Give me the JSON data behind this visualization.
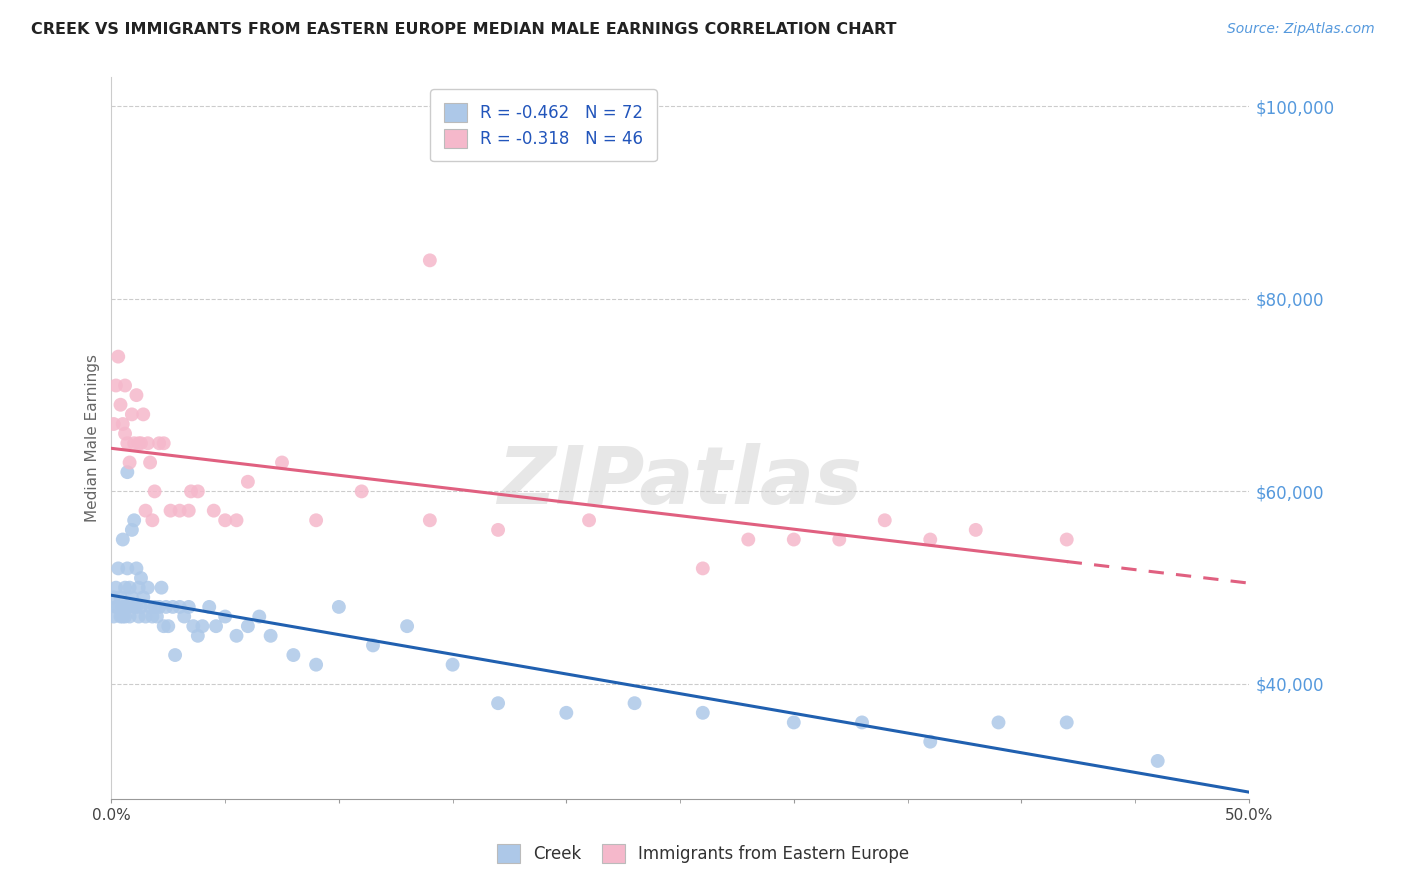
{
  "title": "CREEK VS IMMIGRANTS FROM EASTERN EUROPE MEDIAN MALE EARNINGS CORRELATION CHART",
  "source": "Source: ZipAtlas.com",
  "ylabel": "Median Male Earnings",
  "yticks": [
    40000,
    60000,
    80000,
    100000
  ],
  "ytick_labels": [
    "$40,000",
    "$60,000",
    "$80,000",
    "$100,000"
  ],
  "legend_labels": [
    "Creek",
    "Immigrants from Eastern Europe"
  ],
  "creek_R": "-0.462",
  "creek_N": "72",
  "ee_R": "-0.318",
  "ee_N": "46",
  "creek_color": "#adc8e8",
  "creek_line_color": "#2060b0",
  "ee_color": "#f5b8cb",
  "ee_line_color": "#e06080",
  "creek_scatter_x": [
    0.001,
    0.001,
    0.002,
    0.002,
    0.003,
    0.003,
    0.004,
    0.004,
    0.005,
    0.005,
    0.005,
    0.006,
    0.006,
    0.006,
    0.007,
    0.007,
    0.007,
    0.008,
    0.008,
    0.009,
    0.009,
    0.01,
    0.01,
    0.011,
    0.011,
    0.012,
    0.012,
    0.013,
    0.013,
    0.014,
    0.015,
    0.016,
    0.017,
    0.018,
    0.019,
    0.02,
    0.021,
    0.022,
    0.023,
    0.024,
    0.025,
    0.027,
    0.028,
    0.03,
    0.032,
    0.034,
    0.036,
    0.038,
    0.04,
    0.043,
    0.046,
    0.05,
    0.055,
    0.06,
    0.065,
    0.07,
    0.08,
    0.09,
    0.1,
    0.115,
    0.13,
    0.15,
    0.17,
    0.2,
    0.23,
    0.26,
    0.3,
    0.33,
    0.36,
    0.39,
    0.42,
    0.46
  ],
  "creek_scatter_y": [
    49000,
    47000,
    50000,
    48000,
    52000,
    48000,
    49000,
    47000,
    55000,
    48000,
    47000,
    50000,
    48000,
    47000,
    62000,
    52000,
    48000,
    50000,
    47000,
    56000,
    49000,
    57000,
    48000,
    52000,
    48000,
    50000,
    47000,
    51000,
    48000,
    49000,
    47000,
    50000,
    48000,
    47000,
    48000,
    47000,
    48000,
    50000,
    46000,
    48000,
    46000,
    48000,
    43000,
    48000,
    47000,
    48000,
    46000,
    45000,
    46000,
    48000,
    46000,
    47000,
    45000,
    46000,
    47000,
    45000,
    43000,
    42000,
    48000,
    44000,
    46000,
    42000,
    38000,
    37000,
    38000,
    37000,
    36000,
    36000,
    34000,
    36000,
    36000,
    32000
  ],
  "ee_scatter_x": [
    0.001,
    0.002,
    0.003,
    0.004,
    0.005,
    0.006,
    0.006,
    0.007,
    0.008,
    0.009,
    0.01,
    0.011,
    0.012,
    0.013,
    0.014,
    0.015,
    0.016,
    0.017,
    0.018,
    0.019,
    0.021,
    0.023,
    0.026,
    0.03,
    0.034,
    0.038,
    0.045,
    0.055,
    0.06,
    0.075,
    0.09,
    0.11,
    0.14,
    0.17,
    0.21,
    0.26,
    0.3,
    0.34,
    0.38,
    0.42,
    0.36,
    0.28,
    0.14,
    0.035,
    0.05,
    0.32
  ],
  "ee_scatter_y": [
    67000,
    71000,
    74000,
    69000,
    67000,
    66000,
    71000,
    65000,
    63000,
    68000,
    65000,
    70000,
    65000,
    65000,
    68000,
    58000,
    65000,
    63000,
    57000,
    60000,
    65000,
    65000,
    58000,
    58000,
    58000,
    60000,
    58000,
    57000,
    61000,
    63000,
    57000,
    60000,
    57000,
    56000,
    57000,
    52000,
    55000,
    57000,
    56000,
    55000,
    55000,
    55000,
    84000,
    60000,
    57000,
    55000
  ],
  "xlim": [
    0.0,
    0.5
  ],
  "ylim": [
    28000,
    103000
  ],
  "watermark": "ZIPatlas",
  "watermark_color": "#d0d0d0",
  "background_color": "#ffffff"
}
